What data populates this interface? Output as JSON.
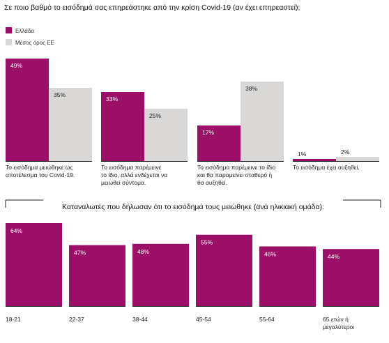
{
  "colors": {
    "greece": "#9b0f68",
    "eu": "#d9d8d6",
    "line": "#222222"
  },
  "chart_data": [
    {
      "type": "bar",
      "title": "Σε ποιο βαθμό το εισόδημά σας επηρεάστηκε από την κρίση Covid-19 (αν έχει επηρεαστεί);",
      "categories": [
        [
          "Το εισόδημα μειώθηκε ως",
          "αποτέλεσμα του Covid-19."
        ],
        [
          "Το εισόδημα παρέμεινε",
          "το ίδιο, αλλά ενδέχεται να",
          "μειωθεί σύντομα."
        ],
        [
          "Το εισόδημα παρέμεινε το ίδιο",
          "και θα παραμείνει σταθερό ή",
          "θα αυξηθεί."
        ],
        [
          "Το εισόδημα έχει αυξηθεί."
        ]
      ],
      "series": [
        {
          "name": "Ελλάδα",
          "values": [
            49,
            33,
            17,
            1
          ],
          "labels": [
            "49%",
            "33%",
            "17%",
            "1%"
          ]
        },
        {
          "name": "Μέσος όρος ΕΕ",
          "values": [
            35,
            25,
            38,
            2
          ],
          "labels": [
            "35%",
            "25%",
            "38%",
            "2%"
          ]
        }
      ],
      "ylim": [
        0,
        52
      ]
    },
    {
      "type": "bar",
      "title": "Καταναλωτές που δήλωσαν ότι το εισόδημά τους μειώθηκε (ανά ηλικιακή ομάδα):",
      "categories": [
        [
          "18-21"
        ],
        [
          "22-37"
        ],
        [
          "38-44"
        ],
        [
          "45-54"
        ],
        [
          "55-64"
        ],
        [
          "65 ετών ή",
          "μεγαλύτεροι"
        ]
      ],
      "values": [
        64,
        47,
        48,
        55,
        46,
        44
      ],
      "labels": [
        "64%",
        "47%",
        "48%",
        "55%",
        "46%",
        "44%"
      ],
      "ylim": [
        0,
        64
      ]
    }
  ]
}
